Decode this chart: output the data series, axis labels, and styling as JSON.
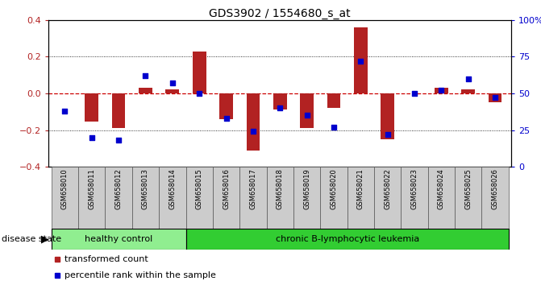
{
  "title": "GDS3902 / 1554680_s_at",
  "samples": [
    "GSM658010",
    "GSM658011",
    "GSM658012",
    "GSM658013",
    "GSM658014",
    "GSM658015",
    "GSM658016",
    "GSM658017",
    "GSM658018",
    "GSM658019",
    "GSM658020",
    "GSM658021",
    "GSM658022",
    "GSM658023",
    "GSM658024",
    "GSM658025",
    "GSM658026"
  ],
  "red_values": [
    0.0,
    -0.155,
    -0.19,
    0.03,
    0.02,
    0.23,
    -0.14,
    -0.31,
    -0.09,
    -0.19,
    -0.08,
    0.36,
    -0.25,
    0.0,
    0.03,
    0.02,
    -0.05
  ],
  "blue_values_pct": [
    38,
    20,
    18,
    62,
    57,
    50,
    33,
    24,
    40,
    35,
    27,
    72,
    22,
    50,
    52,
    60,
    47
  ],
  "healthy_control_count": 5,
  "ylim": [
    -0.4,
    0.4
  ],
  "right_ylim": [
    0,
    100
  ],
  "right_yticks": [
    0,
    25,
    50,
    75,
    100
  ],
  "right_yticklabels": [
    "0",
    "25",
    "50",
    "75",
    "100%"
  ],
  "left_yticks": [
    -0.4,
    -0.2,
    0.0,
    0.2,
    0.4
  ],
  "bar_color": "#b22222",
  "dot_color": "#0000cd",
  "healthy_color": "#90ee90",
  "leukemia_color": "#32cd32",
  "grid_color": "black",
  "zero_line_color": "#cc0000",
  "bg_color": "white",
  "label_healthy": "healthy control",
  "label_leukemia": "chronic B-lymphocytic leukemia",
  "legend_red": "transformed count",
  "legend_blue": "percentile rank within the sample",
  "disease_state_label": "disease state",
  "xtick_bg_color": "#cccccc",
  "bar_width": 0.5
}
